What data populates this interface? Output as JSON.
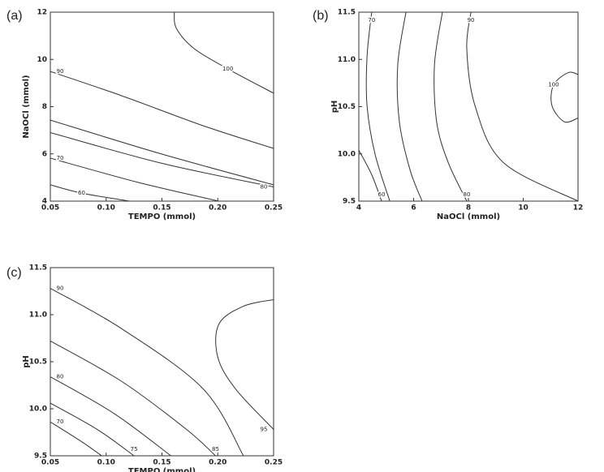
{
  "chart_data": [
    {
      "type": "contour",
      "panel": "(a)",
      "xlabel": "TEMPO (mmol)",
      "ylabel": "NaOCl (mmol)",
      "xlim": [
        0.05,
        0.25
      ],
      "ylim": [
        4,
        12
      ],
      "xticks": [
        {
          "value": 0.05,
          "label": "0.05"
        },
        {
          "value": 0.1,
          "label": "0.10"
        },
        {
          "value": 0.15,
          "label": "0.15"
        },
        {
          "value": 0.2,
          "label": "0.20"
        },
        {
          "value": 0.25,
          "label": "0.25"
        }
      ],
      "yticks": [
        4,
        6,
        8,
        10,
        12
      ],
      "series": [
        {
          "name": "100",
          "x": [
            0.161,
            0.163,
            0.179,
            0.209,
            0.25
          ],
          "y": [
            12,
            11.31,
            10.45,
            9.6,
            8.57
          ]
        },
        {
          "name": "90",
          "x": [
            0.05,
            0.114,
            0.187,
            0.25
          ],
          "y": [
            9.49,
            8.46,
            7.19,
            6.23
          ]
        },
        {
          "x": [
            0.05,
            0.15,
            0.25
          ],
          "y": [
            7.43,
            5.99,
            4.69
          ]
        },
        {
          "name": "80",
          "x": [
            0.05,
            0.15,
            0.25
          ],
          "y": [
            6.9,
            5.6,
            4.6
          ]
        },
        {
          "name": "70",
          "x": [
            0.05,
            0.129,
            0.201
          ],
          "y": [
            5.82,
            4.79,
            4.0
          ]
        },
        {
          "name": "60",
          "x": [
            0.05,
            0.078,
            0.121
          ],
          "y": [
            4.69,
            4.34,
            4.0
          ]
        }
      ]
    },
    {
      "type": "contour",
      "panel": "(b)",
      "xlabel": "NaOCl (mmol)",
      "ylabel": "pH",
      "xlim": [
        4,
        12
      ],
      "ylim": [
        9.5,
        11.5
      ],
      "xticks": [
        4,
        6,
        8,
        10,
        12
      ],
      "yticks": [
        9.5,
        {
          "value": 10,
          "label": "10.0"
        },
        10.5,
        {
          "value": 11,
          "label": "11.0"
        },
        11.5
      ],
      "series": [
        {
          "name": "70",
          "x": [
            4.47,
            4.3,
            4.3,
            4.59,
            5.13
          ],
          "y": [
            11.5,
            11.03,
            10.51,
            10.0,
            9.5
          ]
        },
        {
          "name": "60",
          "x": [
            4.0,
            4.47,
            4.83
          ],
          "y": [
            10.04,
            9.78,
            9.5
          ]
        },
        {
          "x": [
            5.72,
            5.42,
            5.48,
            5.87,
            6.31
          ],
          "y": [
            11.5,
            10.94,
            10.34,
            9.83,
            9.5
          ]
        },
        {
          "name": "80",
          "x": [
            7.05,
            6.76,
            6.84,
            7.26,
            7.94
          ],
          "y": [
            11.5,
            10.94,
            10.34,
            9.91,
            9.5
          ]
        },
        {
          "name": "90",
          "x": [
            8.09,
            7.94,
            8.24,
            9.27,
            12
          ],
          "y": [
            11.5,
            11.11,
            10.51,
            9.91,
            9.5
          ]
        },
        {
          "name": "100",
          "x": [
            12,
            11.5,
            11.05,
            11.11,
            11.64,
            12
          ],
          "y": [
            10.38,
            10.34,
            10.51,
            10.73,
            10.86,
            10.84
          ]
        }
      ]
    },
    {
      "type": "contour",
      "panel": "(c)",
      "xlabel": "TEMPO (mmol)",
      "ylabel": "pH",
      "xlim": [
        0.05,
        0.25
      ],
      "ylim": [
        9.5,
        11.5
      ],
      "xticks": [
        {
          "value": 0.05,
          "label": "0.05"
        },
        {
          "value": 0.1,
          "label": "0.10"
        },
        {
          "value": 0.15,
          "label": "0.15"
        },
        {
          "value": 0.2,
          "label": "0.20"
        },
        {
          "value": 0.25,
          "label": "0.25"
        }
      ],
      "yticks": [
        9.5,
        {
          "value": 10,
          "label": "10.0"
        },
        10.5,
        {
          "value": 11,
          "label": "11.0"
        },
        11.5
      ],
      "series": [
        {
          "name": "90",
          "x": [
            0.05,
            0.114,
            0.187,
            0.223
          ],
          "y": [
            11.28,
            10.85,
            10.21,
            9.5
          ]
        },
        {
          "name": "85",
          "x": [
            0.05,
            0.114,
            0.172,
            0.198
          ],
          "y": [
            10.72,
            10.29,
            9.78,
            9.5
          ]
        },
        {
          "name": "80",
          "x": [
            0.05,
            0.107,
            0.158
          ],
          "y": [
            10.34,
            9.95,
            9.5
          ]
        },
        {
          "name": "75",
          "x": [
            0.05,
            0.092,
            0.125
          ],
          "y": [
            10.06,
            9.78,
            9.5
          ]
        },
        {
          "name": "70",
          "x": [
            0.05,
            0.078,
            0.096
          ],
          "y": [
            9.86,
            9.65,
            9.5
          ]
        },
        {
          "name": "95",
          "x": [
            0.25,
            0.223,
            0.201,
            0.2,
            0.216,
            0.25
          ],
          "y": [
            11.16,
            11.09,
            10.9,
            10.55,
            10.21,
            9.78
          ]
        }
      ]
    }
  ]
}
